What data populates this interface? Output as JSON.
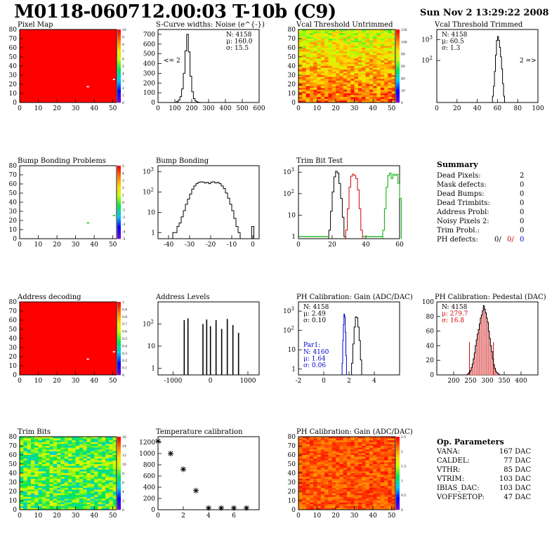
{
  "header": {
    "title": "M0118-060712.00:03 T-10b (C9)",
    "date": "Sun Nov  2 13:29:22 2008"
  },
  "chart_data": [
    {
      "id": "pixel_map",
      "type": "heatmap",
      "title": "Pixel Map",
      "xlim": [
        0,
        52
      ],
      "ylim": [
        0,
        80
      ],
      "xticks": [
        "0",
        "10",
        "20",
        "30",
        "40",
        "50"
      ],
      "yticks": [
        "0",
        "10",
        "20",
        "30",
        "40",
        "50",
        "60",
        "70",
        "80"
      ],
      "zlim": [
        0,
        10
      ],
      "zticks": [
        "0",
        "1",
        "2",
        "3",
        "4",
        "5",
        "6",
        "7",
        "8",
        "9",
        "10"
      ],
      "fill": "uniform",
      "uniform_color": "#ff0000",
      "dead_pixels": [
        [
          36,
          18
        ],
        [
          50,
          26
        ]
      ]
    },
    {
      "id": "scurve",
      "type": "histogram",
      "title": "S-Curve widths: Noise (e^{-})",
      "xlim": [
        0,
        600
      ],
      "ylim": [
        0,
        750
      ],
      "xticks": [
        "0",
        "100",
        "200",
        "300",
        "400",
        "500",
        "600"
      ],
      "yticks": [
        "0",
        "100",
        "200",
        "300",
        "400",
        "500",
        "600",
        "700"
      ],
      "bin_start": 100,
      "bin_width": 10,
      "counts": [
        3,
        10,
        25,
        60,
        140,
        300,
        530,
        700,
        520,
        270,
        110,
        40,
        15,
        5,
        2
      ],
      "stats": [
        "N: 4158",
        "μ: 160.0",
        "σ: 15.5"
      ],
      "annotation": "<= 2"
    },
    {
      "id": "vcal_untrimmed",
      "type": "heatmap",
      "title": "Vcal Threshold Untrimmed",
      "xlim": [
        0,
        52
      ],
      "ylim": [
        0,
        80
      ],
      "xticks": [
        "0",
        "10",
        "20",
        "30",
        "40",
        "50"
      ],
      "yticks": [
        "0",
        "10",
        "20",
        "30",
        "40",
        "50",
        "60",
        "70",
        "80"
      ],
      "zlim": [
        0,
        140
      ],
      "zticks": [
        "0",
        "20",
        "40",
        "60",
        "80",
        "100",
        "120"
      ],
      "fill": "noise_gradient"
    },
    {
      "id": "vcal_trimmed",
      "type": "histogram",
      "title": "Vcal Threshold Trimmed",
      "xlim": [
        0,
        100
      ],
      "log_y": true,
      "ylim": [
        1,
        3000
      ],
      "xticks": [
        "0",
        "20",
        "40",
        "60",
        "80",
        "100"
      ],
      "yticks": [
        "10^2",
        "10^3"
      ],
      "bin_start": 55,
      "bin_width": 1,
      "counts": [
        2,
        6,
        30,
        180,
        900,
        1400,
        900,
        420,
        150,
        40,
        8,
        2
      ],
      "stats": [
        "N: 4158",
        "μ: 60.5",
        "σ: 1.3"
      ],
      "annotation": "2 =>"
    },
    {
      "id": "bump_map",
      "type": "heatmap",
      "title": "Bump Bonding Problems",
      "xlim": [
        0,
        52
      ],
      "ylim": [
        0,
        80
      ],
      "xticks": [
        "0",
        "10",
        "20",
        "30",
        "40",
        "50"
      ],
      "yticks": [
        "0",
        "10",
        "20",
        "30",
        "40",
        "50",
        "60",
        "70",
        "80"
      ],
      "zlim": [
        -5,
        5
      ],
      "zticks": [
        "-5",
        "-4",
        "-3",
        "-2",
        "-1",
        "0",
        "1",
        "2",
        "3",
        "4",
        "5"
      ],
      "fill": "none",
      "marks": [
        [
          36,
          18
        ],
        [
          50,
          26
        ]
      ]
    },
    {
      "id": "bump_bonding",
      "type": "histogram",
      "title": "Bump Bonding",
      "xlim": [
        -45,
        3
      ],
      "log_y": true,
      "ylim": [
        0.5,
        2000
      ],
      "xticks": [
        "-40",
        "-30",
        "-20",
        "-10",
        "0"
      ],
      "yticks": [
        "1",
        "10",
        "10^2",
        "10^3"
      ],
      "bin_start": -38,
      "bin_width": 1,
      "counts": [
        1,
        1,
        2,
        3,
        6,
        12,
        25,
        45,
        80,
        140,
        200,
        260,
        300,
        320,
        310,
        280,
        300,
        260,
        310,
        320,
        280,
        300,
        260,
        200,
        150,
        90,
        50,
        25,
        12,
        5,
        2,
        1
      ],
      "outliers": [
        {
          "x": 0,
          "count": 2
        }
      ]
    },
    {
      "id": "trim_bits",
      "type": "histogram",
      "title": "Trim Bit Test",
      "xlim": [
        0,
        60
      ],
      "log_y": true,
      "ylim": [
        0.8,
        2000
      ],
      "xticks": [
        "0",
        "20",
        "40",
        "60"
      ],
      "yticks": [
        "1",
        "10",
        "10^2",
        "10^3"
      ],
      "series": [
        {
          "color": "#000000",
          "bin_start": 18,
          "bin_width": 1,
          "counts": [
            2,
            15,
            120,
            600,
            1100,
            900,
            300,
            60,
            8,
            1
          ]
        },
        {
          "color": "#cc0000",
          "bin_start": 28,
          "bin_width": 1,
          "counts": [
            2,
            20,
            200,
            650,
            800,
            700,
            500,
            150,
            20,
            2
          ]
        },
        {
          "color": "#00aa00",
          "bin_start": 50,
          "bin_width": 1,
          "counts": [
            2,
            20,
            200,
            700,
            900,
            500,
            800,
            700,
            800,
            300,
            60
          ]
        }
      ]
    },
    {
      "id": "address_decoding",
      "type": "heatmap",
      "title": "Address decoding",
      "xlim": [
        0,
        52
      ],
      "ylim": [
        0,
        80
      ],
      "xticks": [
        "0",
        "10",
        "20",
        "30",
        "40",
        "50"
      ],
      "yticks": [
        "0",
        "10",
        "20",
        "30",
        "40",
        "50",
        "60",
        "70",
        "80"
      ],
      "zlim": [
        0,
        1
      ],
      "zticks": [
        "0",
        "0.1",
        "0.2",
        "0.3",
        "0.4",
        "0.5",
        "0.6",
        "0.7",
        "0.8",
        "0.9",
        "1"
      ],
      "fill": "uniform",
      "uniform_color": "#ff0000",
      "dead_pixels": [
        [
          36,
          18
        ],
        [
          50,
          26
        ]
      ]
    },
    {
      "id": "address_levels",
      "type": "spikes",
      "title": "Address Levels",
      "xlim": [
        -1400,
        1300
      ],
      "log_y": true,
      "ylim": [
        0.5,
        1000
      ],
      "xticks": [
        "-1000",
        "0",
        "1000"
      ],
      "yticks": [
        "1",
        "10",
        "10^2"
      ],
      "spikes": [
        {
          "x": -700,
          "y": 150
        },
        {
          "x": -600,
          "y": 180
        },
        {
          "x": -200,
          "y": 100
        },
        {
          "x": -100,
          "y": 160
        },
        {
          "x": 0,
          "y": 80
        },
        {
          "x": 150,
          "y": 150
        },
        {
          "x": 300,
          "y": 60
        },
        {
          "x": 450,
          "y": 170
        },
        {
          "x": 600,
          "y": 90
        },
        {
          "x": 750,
          "y": 40
        }
      ]
    },
    {
      "id": "ph_gain",
      "type": "histogram",
      "title": "PH Calibration: Gain (ADC/DAC)",
      "xlim": [
        -2,
        6
      ],
      "log_y": true,
      "ylim": [
        0.5,
        3000
      ],
      "xticks": [
        "-2",
        "0",
        "2",
        "4"
      ],
      "yticks": [
        "1",
        "10",
        "10^2",
        "10^3"
      ],
      "series": [
        {
          "color": "#000000",
          "bin_start": 2.2,
          "bin_width": 0.1,
          "counts": [
            2,
            20,
            150,
            500,
            450,
            150,
            30,
            3
          ]
        },
        {
          "color": "#0000cc",
          "bin_start": 1.45,
          "bin_width": 0.05,
          "counts": [
            2,
            30,
            200,
            700,
            500,
            80,
            5
          ]
        }
      ],
      "stats": [
        "N: 4158",
        "μ: 2.49",
        "σ: 0.10"
      ],
      "stats2_title": "Par1:",
      "stats2": [
        "N: 4160",
        "μ: 1.64",
        "σ: 0.06"
      ]
    },
    {
      "id": "ph_pedestal",
      "type": "histogram",
      "title": "PH Calibration: Pedestal (DAC)",
      "xlim": [
        150,
        450
      ],
      "ylim": [
        0,
        100
      ],
      "xticks": [
        "200",
        "250",
        "300",
        "350",
        "400"
      ],
      "yticks": [
        "0",
        "20",
        "40",
        "60",
        "80",
        "100"
      ],
      "bin_start": 240,
      "bin_width": 3,
      "counts": [
        1,
        2,
        4,
        6,
        10,
        15,
        22,
        30,
        40,
        48,
        56,
        62,
        70,
        78,
        82,
        88,
        95,
        90,
        85,
        78,
        72,
        60,
        50,
        40,
        32,
        22,
        14,
        9,
        5,
        3,
        2,
        1
      ],
      "stats": [
        "N: 4158",
        "μ: 279.7",
        "σ: 16.8"
      ]
    },
    {
      "id": "trim_bits_map",
      "type": "heatmap",
      "title": "Trim Bits",
      "xlim": [
        0,
        52
      ],
      "ylim": [
        0,
        80
      ],
      "xticks": [
        "0",
        "10",
        "20",
        "30",
        "40",
        "50"
      ],
      "yticks": [
        "0",
        "10",
        "20",
        "30",
        "40",
        "50",
        "60",
        "70",
        "80"
      ],
      "zlim": [
        0,
        16
      ],
      "zticks": [
        "0",
        "2",
        "4",
        "6",
        "8",
        "10",
        "12",
        "14",
        "16"
      ],
      "fill": "trim_noise"
    },
    {
      "id": "temp_calibration",
      "type": "scatter",
      "title": "Temperature calibration",
      "xlim": [
        0,
        8
      ],
      "ylim": [
        0,
        1300
      ],
      "xticks": [
        "0",
        "2",
        "4",
        "6"
      ],
      "yticks": [
        "0",
        "200",
        "400",
        "600",
        "800",
        "1000",
        "1200"
      ],
      "x": [
        0,
        1,
        2,
        3,
        4,
        5,
        6,
        7
      ],
      "y": [
        1220,
        1000,
        720,
        340,
        30,
        30,
        30,
        30
      ]
    },
    {
      "id": "ph_gain_map",
      "type": "heatmap",
      "title": "PH Calibration: Gain (ADC/DAC)",
      "xlim": [
        0,
        52
      ],
      "ylim": [
        0,
        80
      ],
      "xticks": [
        "0",
        "10",
        "20",
        "30",
        "40",
        "50"
      ],
      "yticks": [
        "0",
        "10",
        "20",
        "30",
        "40",
        "50",
        "60",
        "70",
        "80"
      ],
      "zlim": [
        0,
        2.75
      ],
      "zticks": [
        "0",
        "0.5",
        "1",
        "1.5",
        "2",
        "2.5"
      ],
      "fill": "gain_noise"
    }
  ],
  "summary": {
    "title": "Summary",
    "rows": [
      {
        "label": "Dead Pixels:",
        "value": "2"
      },
      {
        "label": "Mask defects:",
        "value": "0"
      },
      {
        "label": "Dead Bumps:",
        "value": "0"
      },
      {
        "label": "Dead Trimbits:",
        "value": "0"
      },
      {
        "label": "Address Probl:",
        "value": "0"
      },
      {
        "label": "Noisy Pixels 2:",
        "value": "0"
      },
      {
        "label": "Trim Probl.:",
        "value": "0"
      }
    ],
    "ph_defects": {
      "label": "PH defects:",
      "v1": "0/",
      "v2": "0/",
      "v3": "0"
    }
  },
  "op_params": {
    "title": "Op. Parameters",
    "rows": [
      {
        "label": "VANA:",
        "value": "167 DAC"
      },
      {
        "label": "CALDEL:",
        "value": "77 DAC"
      },
      {
        "label": "VTHR:",
        "value": "85 DAC"
      },
      {
        "label": "VTRIM:",
        "value": "103 DAC"
      },
      {
        "label": "IBIAS_DAC:",
        "value": "103 DAC"
      },
      {
        "label": "VOFFSETOP:",
        "value": "47 DAC"
      }
    ]
  }
}
